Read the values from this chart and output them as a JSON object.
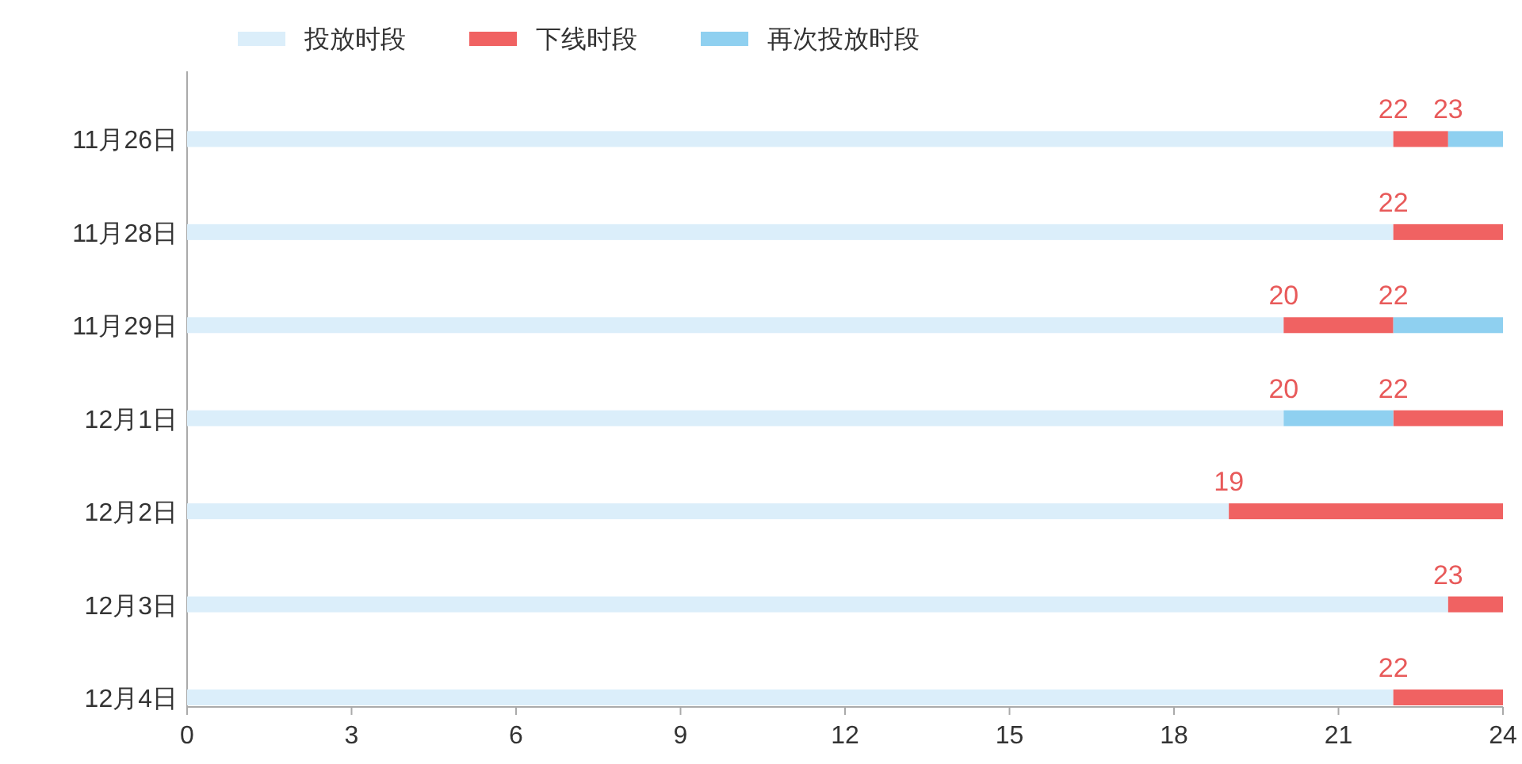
{
  "chart_data": {
    "type": "bar",
    "orientation": "horizontal",
    "categories": [
      "11月26日",
      "11月28日",
      "11月29日",
      "12月1日",
      "12月2日",
      "12月3日",
      "12月4日"
    ],
    "series": [
      {
        "name": "投放时段",
        "color": "#dbeefa",
        "base": [
          0,
          0,
          0,
          0,
          0,
          0,
          0
        ],
        "values": [
          22,
          22,
          20,
          20,
          19,
          23,
          22
        ]
      },
      {
        "name": "下线时段",
        "color": "#f06262",
        "base": [
          22,
          22,
          20,
          22,
          19,
          23,
          22
        ],
        "values": [
          1,
          2,
          2,
          2,
          5,
          1,
          2
        ]
      },
      {
        "name": "再次投放时段",
        "color": "#8fd0f0",
        "base": [
          23,
          null,
          22,
          20,
          null,
          null,
          null
        ],
        "values": [
          1,
          null,
          2,
          2,
          null,
          null,
          null
        ]
      }
    ],
    "xlim": [
      0,
      24
    ],
    "xticks": [
      0,
      3,
      6,
      9,
      12,
      15,
      18,
      21,
      24
    ],
    "legend": "top left",
    "grid": false,
    "annotations": [
      {
        "text": "22",
        "x": 22,
        "y": "11月26日"
      },
      {
        "text": "23",
        "x": 23,
        "y": "11月26日"
      },
      {
        "text": "22",
        "x": 22,
        "y": "11月28日"
      },
      {
        "text": "20",
        "x": 20,
        "y": "11月29日"
      },
      {
        "text": "22",
        "x": 22,
        "y": "11月29日"
      },
      {
        "text": "20",
        "x": 20,
        "y": "12月1日"
      },
      {
        "text": "22",
        "x": 22,
        "y": "12月1日"
      },
      {
        "text": "19",
        "x": 19,
        "y": "12月2日"
      },
      {
        "text": "23",
        "x": 23,
        "y": "12月3日"
      },
      {
        "text": "22",
        "x": 22,
        "y": "12月4日"
      }
    ]
  }
}
